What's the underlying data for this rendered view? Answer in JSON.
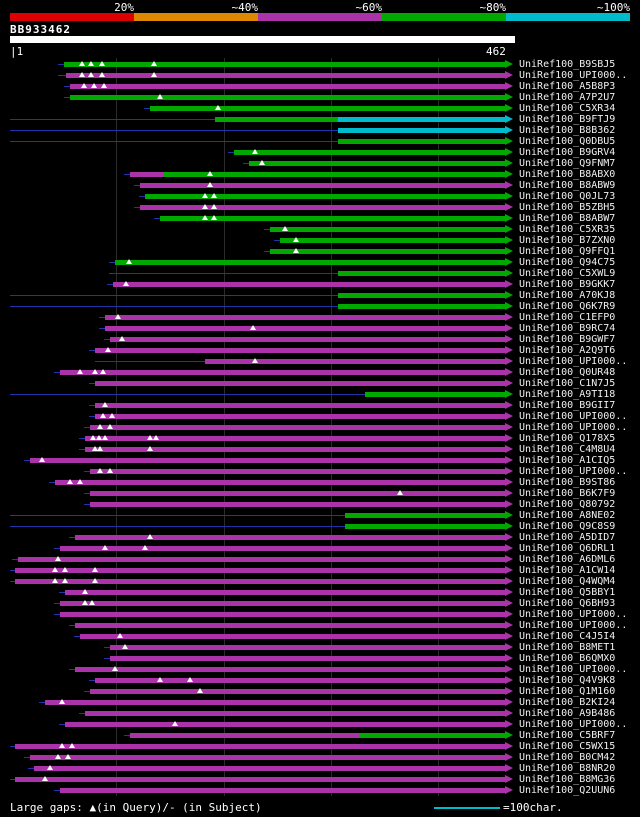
{
  "palette": {
    "red": "#dd0000",
    "orange": "#dd8800",
    "purple": "#aa33aa",
    "green": "#00a800",
    "cyan": "#00bbcc",
    "navy": "#2233aa"
  },
  "scale": {
    "segments": [
      {
        "label": "20%",
        "color": "red",
        "from": 10,
        "to": 134
      },
      {
        "label": "~40%",
        "color": "orange",
        "from": 134,
        "to": 258
      },
      {
        "label": "~60%",
        "color": "purple",
        "from": 258,
        "to": 382
      },
      {
        "label": "~80%",
        "color": "green",
        "from": 382,
        "to": 506
      },
      {
        "label": "~100%",
        "color": "cyan",
        "from": 506,
        "to": 630
      }
    ]
  },
  "query": {
    "name": "BB933462",
    "start_label": "|1",
    "end_label": "462",
    "length": 462
  },
  "gridlines": [
    116,
    224,
    331,
    438
  ],
  "legend": {
    "gaps_text": "Large gaps: ▲(in Query)/- (in Subject)",
    "scalebar_text": "=100char."
  },
  "rows": [
    {
      "label": "UniRef100_B9SBJ5",
      "line_start": 58,
      "segments": [
        {
          "from": 64,
          "to": 505,
          "color": "green"
        }
      ],
      "gaps": [
        82,
        91,
        102,
        154
      ]
    },
    {
      "label": "UniRef100_UPI000..",
      "line_start": 58,
      "segments": [
        {
          "from": 66,
          "to": 505,
          "color": "purple"
        }
      ],
      "gaps": [
        82,
        91,
        102,
        154
      ]
    },
    {
      "label": "UniRef100_A5B8P3",
      "line_start": 64,
      "segments": [
        {
          "from": 70,
          "to": 505,
          "color": "purple"
        }
      ],
      "gaps": [
        84,
        94,
        104
      ]
    },
    {
      "label": "UniRef100_A7P2U7",
      "line_start": 64,
      "segments": [
        {
          "from": 70,
          "to": 505,
          "color": "green"
        }
      ],
      "gaps": [
        160
      ]
    },
    {
      "label": "UniRef100_C5XR34",
      "line_start": 144,
      "segments": [
        {
          "from": 150,
          "to": 505,
          "color": "green"
        }
      ],
      "gaps": [
        218
      ]
    },
    {
      "label": "UniRef100_B9FTJ9",
      "line_start": 10,
      "segments": [
        {
          "from": 215,
          "to": 338,
          "color": "green"
        },
        {
          "from": 338,
          "to": 505,
          "color": "cyan"
        }
      ],
      "gaps": []
    },
    {
      "label": "UniRef100_B8B362",
      "line_start": 10,
      "segments": [
        {
          "from": 338,
          "to": 505,
          "color": "cyan"
        }
      ],
      "gaps": []
    },
    {
      "label": "UniRef100_Q0DBU5",
      "line_start": 10,
      "segments": [
        {
          "from": 338,
          "to": 505,
          "color": "green"
        }
      ],
      "gaps": []
    },
    {
      "label": "UniRef100_B9GRV4",
      "line_start": 228,
      "segments": [
        {
          "from": 234,
          "to": 505,
          "color": "green"
        }
      ],
      "gaps": [
        255
      ]
    },
    {
      "label": "UniRef100_Q9FNM7",
      "line_start": 243,
      "segments": [
        {
          "from": 249,
          "to": 505,
          "color": "green"
        }
      ],
      "gaps": [
        262
      ]
    },
    {
      "label": "UniRef100_B8ABX0",
      "line_start": 124,
      "segments": [
        {
          "from": 130,
          "to": 163,
          "color": "purple"
        },
        {
          "from": 163,
          "to": 505,
          "color": "green"
        }
      ],
      "gaps": [
        210
      ]
    },
    {
      "label": "UniRef100_B8ABW9",
      "line_start": 134,
      "segments": [
        {
          "from": 140,
          "to": 505,
          "color": "purple"
        }
      ],
      "gaps": [
        210
      ]
    },
    {
      "label": "UniRef100_Q0JL73",
      "line_start": 139,
      "segments": [
        {
          "from": 145,
          "to": 505,
          "color": "green"
        }
      ],
      "gaps": [
        205,
        214
      ]
    },
    {
      "label": "UniRef100_B5ZBH5",
      "line_start": 134,
      "segments": [
        {
          "from": 140,
          "to": 505,
          "color": "purple"
        }
      ],
      "gaps": [
        205,
        214
      ]
    },
    {
      "label": "UniRef100_B8ABW7",
      "line_start": 154,
      "segments": [
        {
          "from": 160,
          "to": 505,
          "color": "green"
        }
      ],
      "gaps": [
        205,
        214
      ]
    },
    {
      "label": "UniRef100_C5XR35",
      "line_start": 264,
      "segments": [
        {
          "from": 270,
          "to": 505,
          "color": "green"
        }
      ],
      "gaps": [
        285
      ]
    },
    {
      "label": "UniRef100_B7ZXN0",
      "line_start": 274,
      "segments": [
        {
          "from": 280,
          "to": 505,
          "color": "green"
        }
      ],
      "gaps": [
        296
      ]
    },
    {
      "label": "UniRef100_Q9FFQ1",
      "line_start": 264,
      "segments": [
        {
          "from": 270,
          "to": 505,
          "color": "green"
        }
      ],
      "gaps": [
        296
      ]
    },
    {
      "label": "UniRef100_Q94C75",
      "line_start": 109,
      "segments": [
        {
          "from": 115,
          "to": 505,
          "color": "green"
        }
      ],
      "gaps": [
        129
      ]
    },
    {
      "label": "UniRef100_C5XWL9",
      "line_start": 109,
      "segments": [
        {
          "from": 338,
          "to": 505,
          "color": "green"
        }
      ],
      "gaps": []
    },
    {
      "label": "UniRef100_B9GKK7",
      "line_start": 107,
      "segments": [
        {
          "from": 113,
          "to": 505,
          "color": "purple"
        }
      ],
      "gaps": [
        126
      ]
    },
    {
      "label": "UniRef100_A70KJ8",
      "line_start": 10,
      "segments": [
        {
          "from": 338,
          "to": 505,
          "color": "green"
        }
      ],
      "gaps": []
    },
    {
      "label": "UniRef100_Q6K7R9",
      "line_start": 10,
      "segments": [
        {
          "from": 338,
          "to": 505,
          "color": "green"
        }
      ],
      "gaps": []
    },
    {
      "label": "UniRef100_C1EFP0",
      "line_start": 99,
      "segments": [
        {
          "from": 105,
          "to": 505,
          "color": "purple"
        }
      ],
      "gaps": [
        118
      ]
    },
    {
      "label": "UniRef100_B9RC74",
      "line_start": 99,
      "segments": [
        {
          "from": 105,
          "to": 505,
          "color": "purple"
        }
      ],
      "gaps": [
        253
      ]
    },
    {
      "label": "UniRef100_B9GWF7",
      "line_start": 104,
      "segments": [
        {
          "from": 110,
          "to": 505,
          "color": "purple"
        }
      ],
      "gaps": [
        122
      ]
    },
    {
      "label": "UniRef100_A2Q9T6",
      "line_start": 89,
      "segments": [
        {
          "from": 95,
          "to": 505,
          "color": "purple"
        }
      ],
      "gaps": [
        108
      ]
    },
    {
      "label": "UniRef100_UPI000..",
      "line_start": 95,
      "segments": [
        {
          "from": 205,
          "to": 505,
          "color": "purple"
        }
      ],
      "gaps": [
        255
      ]
    },
    {
      "label": "UniRef100_Q0UR48",
      "line_start": 54,
      "segments": [
        {
          "from": 60,
          "to": 505,
          "color": "purple"
        }
      ],
      "gaps": [
        80,
        95,
        103
      ]
    },
    {
      "label": "UniRef100_C1N7J5",
      "line_start": 89,
      "segments": [
        {
          "from": 95,
          "to": 505,
          "color": "purple"
        }
      ],
      "gaps": []
    },
    {
      "label": "UniRef100_A9TI18",
      "line_start": 10,
      "segments": [
        {
          "from": 365,
          "to": 505,
          "color": "green"
        }
      ],
      "gaps": []
    },
    {
      "label": "UniRef100_B9GII7",
      "line_start": 89,
      "segments": [
        {
          "from": 95,
          "to": 505,
          "color": "purple"
        }
      ],
      "gaps": [
        105
      ]
    },
    {
      "label": "UniRef100_UPI000..",
      "line_start": 89,
      "segments": [
        {
          "from": 95,
          "to": 505,
          "color": "purple"
        }
      ],
      "gaps": [
        103,
        112
      ]
    },
    {
      "label": "UniRef100_UPI000..",
      "line_start": 84,
      "segments": [
        {
          "from": 90,
          "to": 505,
          "color": "purple"
        }
      ],
      "gaps": [
        100,
        110
      ]
    },
    {
      "label": "UniRef100_Q178X5",
      "line_start": 79,
      "segments": [
        {
          "from": 85,
          "to": 505,
          "color": "purple"
        }
      ],
      "gaps": [
        93,
        99,
        105,
        150,
        156
      ]
    },
    {
      "label": "UniRef100_C4M8U4",
      "line_start": 79,
      "segments": [
        {
          "from": 85,
          "to": 505,
          "color": "purple"
        }
      ],
      "gaps": [
        95,
        100,
        150
      ]
    },
    {
      "label": "UniRef100_A1CIQ5",
      "line_start": 24,
      "segments": [
        {
          "from": 30,
          "to": 505,
          "color": "purple"
        }
      ],
      "gaps": [
        42
      ]
    },
    {
      "label": "UniRef100_UPI000..",
      "line_start": 84,
      "segments": [
        {
          "from": 90,
          "to": 505,
          "color": "purple"
        }
      ],
      "gaps": [
        100,
        110
      ]
    },
    {
      "label": "UniRef100_B9ST86",
      "line_start": 49,
      "segments": [
        {
          "from": 55,
          "to": 505,
          "color": "purple"
        }
      ],
      "gaps": [
        70,
        80
      ]
    },
    {
      "label": "UniRef100_B6K7F9",
      "line_start": 84,
      "segments": [
        {
          "from": 90,
          "to": 505,
          "color": "purple"
        }
      ],
      "gaps": [
        400
      ]
    },
    {
      "label": "UniRef100_Q80792",
      "line_start": 84,
      "segments": [
        {
          "from": 90,
          "to": 505,
          "color": "purple"
        }
      ],
      "gaps": []
    },
    {
      "label": "UniRef100_A8NE02",
      "line_start": 10,
      "segments": [
        {
          "from": 345,
          "to": 505,
          "color": "green"
        }
      ],
      "gaps": []
    },
    {
      "label": "UniRef100_Q9C8S9",
      "line_start": 10,
      "segments": [
        {
          "from": 345,
          "to": 505,
          "color": "green"
        }
      ],
      "gaps": []
    },
    {
      "label": "UniRef100_A5DID7",
      "line_start": 69,
      "segments": [
        {
          "from": 75,
          "to": 505,
          "color": "purple"
        }
      ],
      "gaps": [
        150
      ]
    },
    {
      "label": "UniRef100_Q6DRL1",
      "line_start": 54,
      "segments": [
        {
          "from": 60,
          "to": 505,
          "color": "purple"
        }
      ],
      "gaps": [
        105,
        145
      ]
    },
    {
      "label": "UniRef100_A6DML6",
      "line_start": 12,
      "segments": [
        {
          "from": 18,
          "to": 505,
          "color": "purple"
        }
      ],
      "gaps": [
        58
      ]
    },
    {
      "label": "UniRef100_A1CW14",
      "line_start": 10,
      "segments": [
        {
          "from": 15,
          "to": 505,
          "color": "purple"
        }
      ],
      "gaps": [
        55,
        65,
        95
      ]
    },
    {
      "label": "UniRef100_Q4WQM4",
      "line_start": 10,
      "segments": [
        {
          "from": 15,
          "to": 505,
          "color": "purple"
        }
      ],
      "gaps": [
        55,
        65,
        95
      ]
    },
    {
      "label": "UniRef100_Q5BBY1",
      "line_start": 59,
      "segments": [
        {
          "from": 65,
          "to": 505,
          "color": "purple"
        }
      ],
      "gaps": [
        85
      ]
    },
    {
      "label": "UniRef100_Q6BH93",
      "line_start": 54,
      "segments": [
        {
          "from": 60,
          "to": 505,
          "color": "purple"
        }
      ],
      "gaps": [
        85,
        92
      ]
    },
    {
      "label": "UniRef100_UPI000..",
      "line_start": 54,
      "segments": [
        {
          "from": 60,
          "to": 505,
          "color": "purple"
        }
      ],
      "gaps": []
    },
    {
      "label": "UniRef100_UPI000..",
      "line_start": 69,
      "segments": [
        {
          "from": 75,
          "to": 505,
          "color": "purple"
        }
      ],
      "gaps": []
    },
    {
      "label": "UniRef100_C4J5I4",
      "line_start": 74,
      "segments": [
        {
          "from": 80,
          "to": 505,
          "color": "purple"
        }
      ],
      "gaps": [
        120
      ]
    },
    {
      "label": "UniRef100_B8MET1",
      "line_start": 104,
      "segments": [
        {
          "from": 110,
          "to": 505,
          "color": "purple"
        }
      ],
      "gaps": [
        125
      ]
    },
    {
      "label": "UniRef100_B6QMX0",
      "line_start": 104,
      "segments": [
        {
          "from": 110,
          "to": 505,
          "color": "purple"
        }
      ],
      "gaps": []
    },
    {
      "label": "UniRef100_UPI000..",
      "line_start": 69,
      "segments": [
        {
          "from": 75,
          "to": 505,
          "color": "purple"
        }
      ],
      "gaps": [
        115
      ]
    },
    {
      "label": "UniRef100_Q4V9K8",
      "line_start": 89,
      "segments": [
        {
          "from": 95,
          "to": 505,
          "color": "purple"
        }
      ],
      "gaps": [
        160,
        190
      ]
    },
    {
      "label": "UniRef100_Q1M160",
      "line_start": 84,
      "segments": [
        {
          "from": 90,
          "to": 505,
          "color": "purple"
        }
      ],
      "gaps": [
        200
      ]
    },
    {
      "label": "UniRef100_B2KI24",
      "line_start": 39,
      "segments": [
        {
          "from": 45,
          "to": 505,
          "color": "purple"
        }
      ],
      "gaps": [
        62
      ]
    },
    {
      "label": "UniRef100_A9B486",
      "line_start": 79,
      "segments": [
        {
          "from": 85,
          "to": 505,
          "color": "purple"
        }
      ],
      "gaps": []
    },
    {
      "label": "UniRef100_UPI000..",
      "line_start": 59,
      "segments": [
        {
          "from": 65,
          "to": 505,
          "color": "purple"
        }
      ],
      "gaps": [
        175
      ]
    },
    {
      "label": "UniRef100_C5BRF7",
      "line_start": 124,
      "segments": [
        {
          "from": 130,
          "to": 360,
          "color": "purple"
        },
        {
          "from": 360,
          "to": 505,
          "color": "green"
        }
      ],
      "gaps": []
    },
    {
      "label": "UniRef100_C5WX15",
      "line_start": 10,
      "segments": [
        {
          "from": 15,
          "to": 505,
          "color": "purple"
        }
      ],
      "gaps": [
        62,
        72
      ]
    },
    {
      "label": "UniRef100_B0CM42",
      "line_start": 24,
      "segments": [
        {
          "from": 30,
          "to": 505,
          "color": "purple"
        }
      ],
      "gaps": [
        58,
        68
      ]
    },
    {
      "label": "UniRef100_B8NR20",
      "line_start": 28,
      "segments": [
        {
          "from": 34,
          "to": 505,
          "color": "purple"
        }
      ],
      "gaps": [
        50
      ]
    },
    {
      "label": "UniRef100_B8MG36",
      "line_start": 10,
      "segments": [
        {
          "from": 15,
          "to": 505,
          "color": "purple"
        }
      ],
      "gaps": [
        45
      ]
    },
    {
      "label": "UniRef100_Q2UUN6",
      "line_start": 54,
      "segments": [
        {
          "from": 60,
          "to": 505,
          "color": "purple"
        }
      ],
      "gaps": []
    }
  ]
}
